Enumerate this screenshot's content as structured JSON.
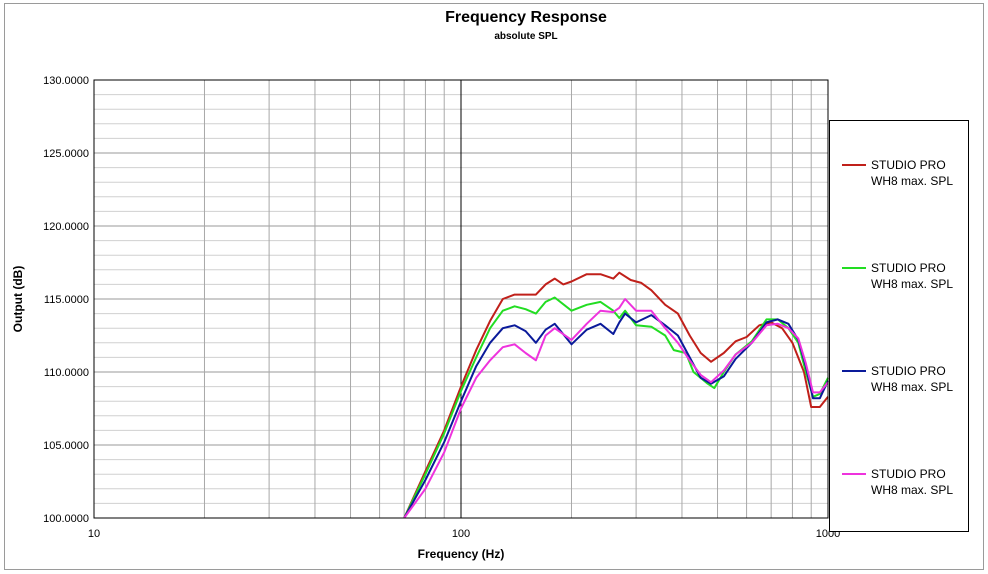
{
  "chart_data": {
    "type": "line",
    "title": "Frequency Response",
    "subtitle": "absolute SPL",
    "xlabel": "Frequency (Hz)",
    "ylabel": "Output (dB)",
    "xscale": "log",
    "xlim": [
      10,
      1000
    ],
    "ylim": [
      100,
      130
    ],
    "x_tick_labels": [
      "10",
      "100",
      "1000"
    ],
    "y_tick_labels": [
      "100.0000",
      "105.0000",
      "110.0000",
      "115.0000",
      "120.0000",
      "125.0000",
      "130.0000"
    ],
    "grid": true,
    "legend_position": "right",
    "series": [
      {
        "name": "STUDIO PRO WH8 max. SPL",
        "color": "#c0201a",
        "points": [
          [
            70,
            100
          ],
          [
            80,
            103.2
          ],
          [
            90,
            106
          ],
          [
            100,
            109
          ],
          [
            110,
            111.5
          ],
          [
            120,
            113.5
          ],
          [
            130,
            115
          ],
          [
            140,
            115.3
          ],
          [
            150,
            115.3
          ],
          [
            160,
            115.3
          ],
          [
            170,
            116
          ],
          [
            180,
            116.4
          ],
          [
            190,
            116
          ],
          [
            200,
            116.2
          ],
          [
            220,
            116.7
          ],
          [
            240,
            116.7
          ],
          [
            260,
            116.4
          ],
          [
            270,
            116.8
          ],
          [
            290,
            116.3
          ],
          [
            310,
            116.1
          ],
          [
            330,
            115.6
          ],
          [
            360,
            114.6
          ],
          [
            390,
            114
          ],
          [
            420,
            112.5
          ],
          [
            450,
            111.3
          ],
          [
            480,
            110.7
          ],
          [
            520,
            111.3
          ],
          [
            560,
            112.1
          ],
          [
            600,
            112.4
          ],
          [
            650,
            113.2
          ],
          [
            700,
            113.4
          ],
          [
            750,
            113
          ],
          [
            800,
            112
          ],
          [
            860,
            110
          ],
          [
            900,
            107.6
          ],
          [
            950,
            107.6
          ],
          [
            1000,
            108.3
          ]
        ]
      },
      {
        "name": "STUDIO PRO WH8 max. SPL",
        "color": "#22dd22",
        "points": [
          [
            70,
            100
          ],
          [
            80,
            103
          ],
          [
            90,
            105.8
          ],
          [
            100,
            108.7
          ],
          [
            110,
            111
          ],
          [
            120,
            113
          ],
          [
            130,
            114.2
          ],
          [
            140,
            114.5
          ],
          [
            150,
            114.3
          ],
          [
            160,
            114
          ],
          [
            170,
            114.8
          ],
          [
            180,
            115.1
          ],
          [
            200,
            114.2
          ],
          [
            220,
            114.6
          ],
          [
            240,
            114.8
          ],
          [
            260,
            114.2
          ],
          [
            270,
            113.7
          ],
          [
            280,
            114.2
          ],
          [
            300,
            113.2
          ],
          [
            330,
            113.1
          ],
          [
            360,
            112.5
          ],
          [
            380,
            111.5
          ],
          [
            410,
            111.3
          ],
          [
            430,
            110
          ],
          [
            470,
            109.2
          ],
          [
            490,
            108.9
          ],
          [
            520,
            110
          ],
          [
            560,
            111.2
          ],
          [
            620,
            112.1
          ],
          [
            680,
            113.6
          ],
          [
            730,
            113.6
          ],
          [
            780,
            113
          ],
          [
            830,
            112
          ],
          [
            870,
            110
          ],
          [
            910,
            108.3
          ],
          [
            950,
            108.5
          ],
          [
            1000,
            109.6
          ]
        ]
      },
      {
        "name": "STUDIO PRO WH8 max. SPL",
        "color": "#0a1a9a",
        "points": [
          [
            70,
            100
          ],
          [
            80,
            102.6
          ],
          [
            90,
            105.2
          ],
          [
            100,
            108
          ],
          [
            110,
            110.4
          ],
          [
            120,
            112
          ],
          [
            130,
            113
          ],
          [
            140,
            113.2
          ],
          [
            150,
            112.8
          ],
          [
            160,
            112
          ],
          [
            170,
            112.9
          ],
          [
            180,
            113.3
          ],
          [
            200,
            111.9
          ],
          [
            220,
            112.9
          ],
          [
            240,
            113.3
          ],
          [
            260,
            112.6
          ],
          [
            270,
            113.4
          ],
          [
            280,
            114
          ],
          [
            300,
            113.4
          ],
          [
            330,
            113.9
          ],
          [
            360,
            113.2
          ],
          [
            390,
            112.5
          ],
          [
            420,
            111
          ],
          [
            450,
            109.6
          ],
          [
            480,
            109.2
          ],
          [
            520,
            109.7
          ],
          [
            560,
            110.9
          ],
          [
            620,
            112
          ],
          [
            680,
            113.4
          ],
          [
            730,
            113.6
          ],
          [
            780,
            113.3
          ],
          [
            830,
            112.2
          ],
          [
            870,
            110.4
          ],
          [
            910,
            108.2
          ],
          [
            950,
            108.2
          ],
          [
            1000,
            109.4
          ]
        ]
      },
      {
        "name": "STUDIO PRO WH8 max. SPL",
        "color": "#ee33dd",
        "points": [
          [
            70,
            100
          ],
          [
            80,
            102
          ],
          [
            90,
            104.5
          ],
          [
            100,
            107.5
          ],
          [
            110,
            109.6
          ],
          [
            120,
            110.8
          ],
          [
            130,
            111.7
          ],
          [
            140,
            111.9
          ],
          [
            150,
            111.3
          ],
          [
            160,
            110.8
          ],
          [
            170,
            112.5
          ],
          [
            180,
            113
          ],
          [
            200,
            112.2
          ],
          [
            220,
            113.3
          ],
          [
            240,
            114.2
          ],
          [
            260,
            114.1
          ],
          [
            270,
            114.4
          ],
          [
            280,
            115
          ],
          [
            300,
            114.2
          ],
          [
            330,
            114.2
          ],
          [
            360,
            113
          ],
          [
            390,
            112
          ],
          [
            420,
            110.8
          ],
          [
            450,
            109.8
          ],
          [
            480,
            109.3
          ],
          [
            520,
            110.1
          ],
          [
            560,
            111.2
          ],
          [
            620,
            112
          ],
          [
            680,
            113.2
          ],
          [
            730,
            113.3
          ],
          [
            780,
            113
          ],
          [
            830,
            112.3
          ],
          [
            870,
            110.6
          ],
          [
            910,
            108.6
          ],
          [
            950,
            108.6
          ],
          [
            1000,
            109.3
          ]
        ]
      }
    ]
  }
}
